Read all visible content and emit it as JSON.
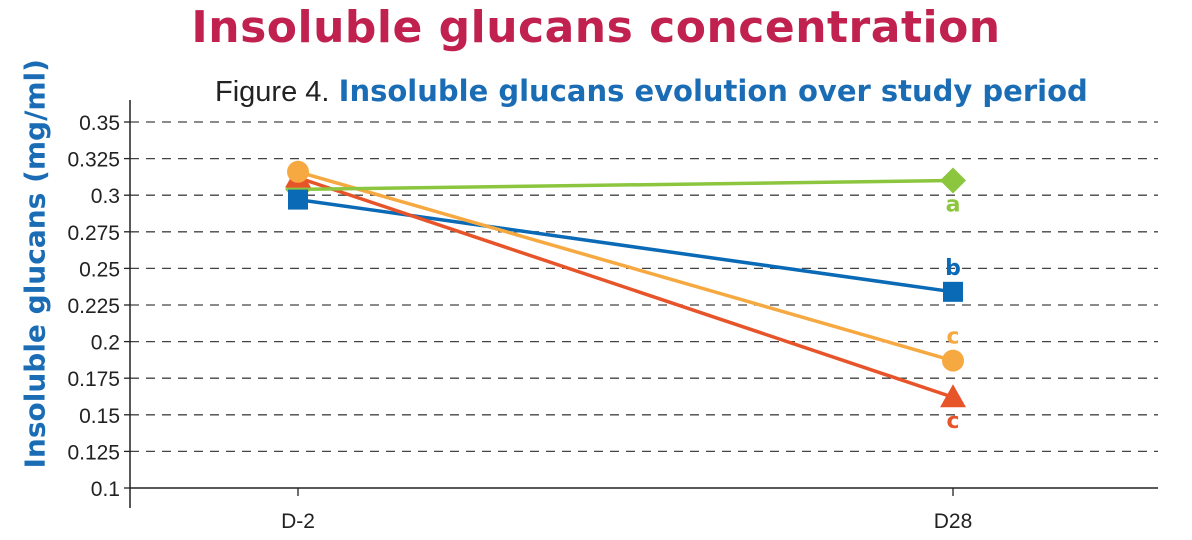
{
  "title": "Insoluble glucans concentration",
  "figure_label": "Figure 4.",
  "chart_data": {
    "type": "line",
    "title": "Insoluble glucans evolution over study period",
    "xlabel": "",
    "ylabel": "Insoluble glucans (mg/ml)",
    "categories": [
      "D-2",
      "D28"
    ],
    "ylim": [
      0.1,
      0.35
    ],
    "yticks": [
      0.1,
      0.125,
      0.15,
      0.175,
      0.2,
      0.225,
      0.25,
      0.275,
      0.3,
      0.325,
      0.35
    ],
    "ytick_labels": [
      "0.1",
      "0.125",
      "0.15",
      "0.175",
      "0.2",
      "0.225",
      "0.25",
      "0.275",
      "0.3",
      "0.325",
      "0.35"
    ],
    "grid": "horizontal dashed",
    "series": [
      {
        "color": "#0a6ab6",
        "marker": "square",
        "values": [
          0.297,
          0.234
        ],
        "annotation": "b"
      },
      {
        "color": "#e8542a",
        "marker": "triangle",
        "values": [
          0.312,
          0.162
        ],
        "annotation": "c"
      },
      {
        "color": "#f7a941",
        "marker": "circle",
        "values": [
          0.316,
          0.187
        ],
        "annotation": "c"
      },
      {
        "color": "#8cc63f",
        "marker": "diamond",
        "values": [
          0.304,
          0.31
        ],
        "annotation": "a"
      }
    ]
  }
}
